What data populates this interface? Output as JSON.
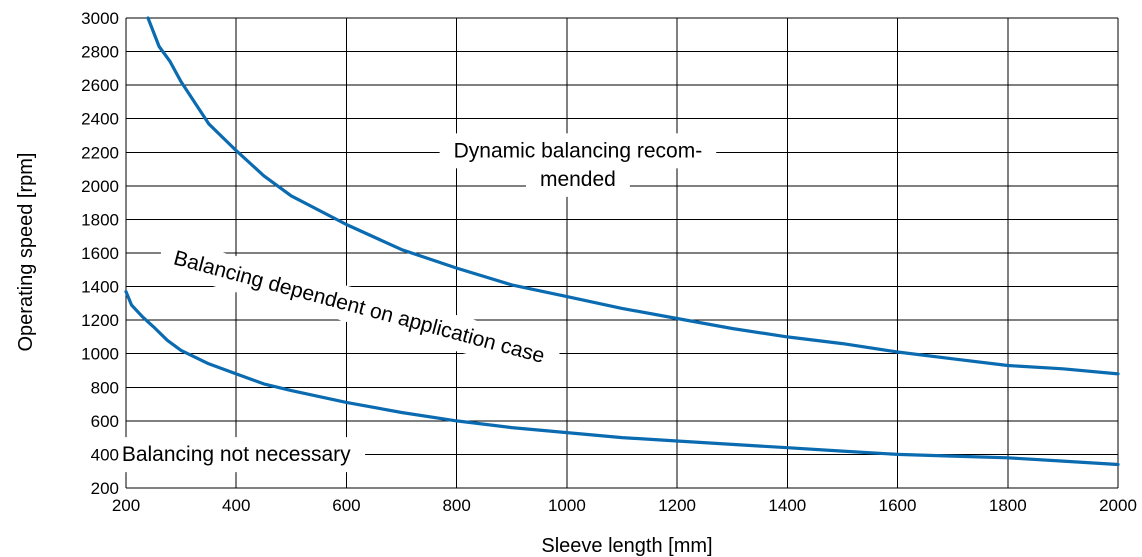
{
  "chart_data": {
    "type": "line",
    "xlabel": "Sleeve length [mm]",
    "ylabel": "Operating speed [rpm]",
    "xlim": [
      200,
      2000
    ],
    "ylim": [
      200,
      3000
    ],
    "x_ticks": [
      "200",
      "400",
      "600",
      "800",
      "1000",
      "1200",
      "1400",
      "1600",
      "1800",
      "2000"
    ],
    "y_ticks": [
      "200",
      "400",
      "600",
      "800",
      "1000",
      "1200",
      "1400",
      "1600",
      "1800",
      "2000",
      "2200",
      "2400",
      "2600",
      "2800",
      "3000"
    ],
    "grid": true,
    "line_color": "#0b6bb1",
    "series": [
      {
        "x": [
          240,
          260,
          280,
          300,
          350,
          400,
          450,
          500,
          600,
          700,
          800,
          900,
          1000,
          1100,
          1200,
          1300,
          1400,
          1500,
          1600,
          1700,
          1800,
          1900,
          2000
        ],
        "y": [
          3000,
          2830,
          2740,
          2620,
          2370,
          2210,
          2060,
          1940,
          1770,
          1620,
          1510,
          1410,
          1340,
          1270,
          1210,
          1150,
          1100,
          1060,
          1010,
          970,
          930,
          910,
          880
        ]
      },
      {
        "x": [
          200,
          210,
          230,
          250,
          275,
          300,
          350,
          400,
          450,
          500,
          600,
          700,
          800,
          900,
          1000,
          1100,
          1200,
          1300,
          1400,
          1500,
          1600,
          1700,
          1800,
          1900,
          2000
        ],
        "y": [
          1370,
          1290,
          1220,
          1160,
          1080,
          1020,
          940,
          880,
          820,
          780,
          710,
          650,
          600,
          560,
          530,
          500,
          480,
          460,
          440,
          420,
          400,
          390,
          380,
          360,
          340
        ]
      }
    ],
    "annotations": [
      {
        "text": "Dynamic balancing recom-",
        "x": 1020,
        "y": 2170
      },
      {
        "text": "mended",
        "x": 1020,
        "y": 2000
      },
      {
        "text": "Balancing dependent on application case",
        "x": 620,
        "y": 1240,
        "rotation": 15
      },
      {
        "text": "Balancing not necessary",
        "x": 400,
        "y": 360
      }
    ]
  }
}
